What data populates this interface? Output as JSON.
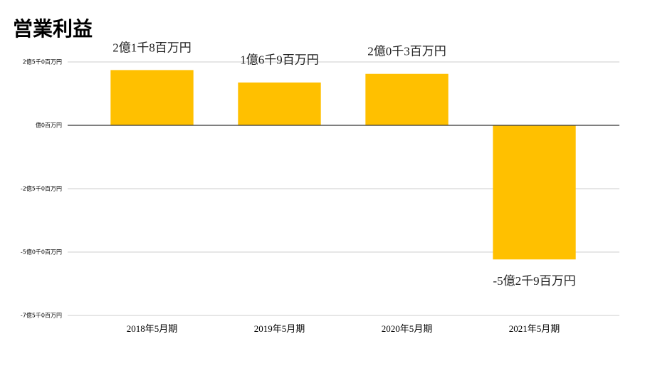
{
  "chart_data": {
    "type": "bar",
    "title": "営業利益",
    "categories": [
      "2018年5月期",
      "2019年5月期",
      "2020年5月期",
      "2021年5月期"
    ],
    "values": [
      218,
      169,
      203,
      -529
    ],
    "value_labels": [
      "2億1千8百万円",
      "1億6千9百万円",
      "2億0千3百万円",
      "-5億2千9百万円"
    ],
    "color": "#ffc000",
    "ylim": [
      -750,
      250
    ],
    "yticks": [
      {
        "value": 250,
        "label": "2億5千0百万円"
      },
      {
        "value": 0,
        "label": "億0百万円"
      },
      {
        "value": -250,
        "label": "-2億5千0百万円"
      },
      {
        "value": -500,
        "label": "-5億0千0百万円"
      },
      {
        "value": -750,
        "label": "-7億5千0百万円"
      }
    ],
    "grid": true
  }
}
